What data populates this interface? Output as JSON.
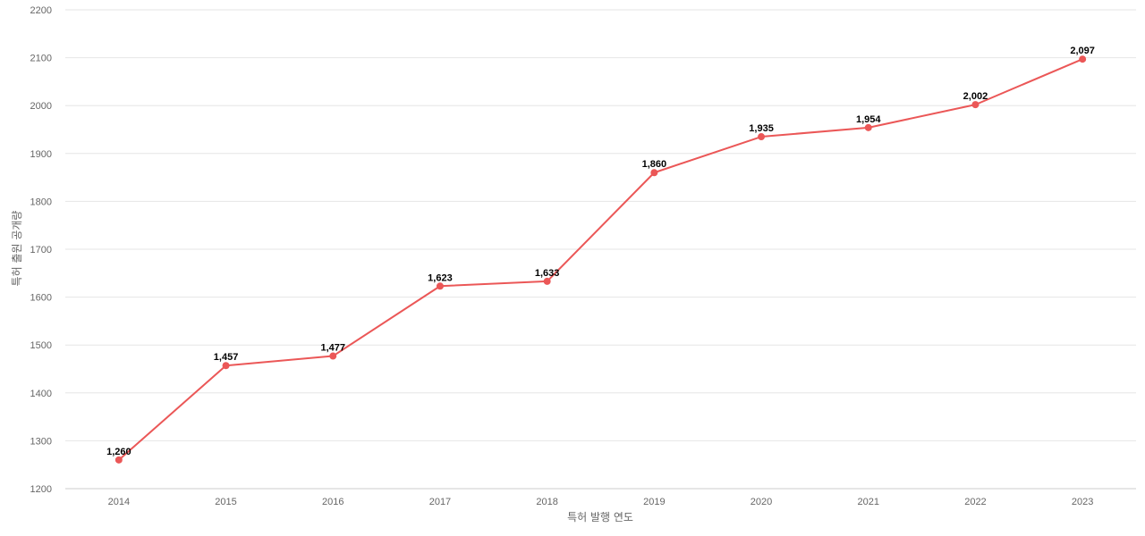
{
  "chart_data": {
    "type": "line",
    "title": "",
    "xlabel": "특허 발행 연도",
    "ylabel": "특허 출원 공개량",
    "categories": [
      "2014",
      "2015",
      "2016",
      "2017",
      "2018",
      "2019",
      "2020",
      "2021",
      "2022",
      "2023"
    ],
    "series": [
      {
        "values": [
          1260,
          1457,
          1477,
          1623,
          1633,
          1860,
          1935,
          1954,
          2002,
          2097
        ],
        "data_labels": [
          "1,260",
          "1,457",
          "1,477",
          "1,623",
          "1,633",
          "1,860",
          "1,935",
          "1,954",
          "2,002",
          "2,097"
        ],
        "color": "#eb5757"
      }
    ],
    "ylim": [
      1200,
      2200
    ],
    "yticks": [
      "1200",
      "1300",
      "1400",
      "1500",
      "1600",
      "1700",
      "1800",
      "1900",
      "2000",
      "2100",
      "2200"
    ],
    "grid": true,
    "legend": "none"
  }
}
